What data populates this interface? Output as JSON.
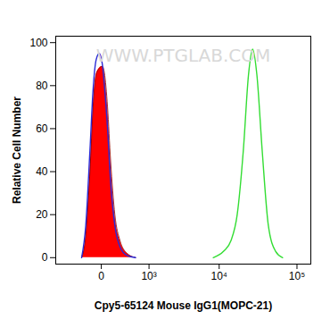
{
  "chart_data": {
    "type": "histogram_overlay",
    "x_label": "Cpy5-65124 Mouse IgG1(MOPC-21)",
    "y_label": "Relative Cell Number",
    "annotations": [
      {
        "text": "WWW.PTGLAB.COM"
      }
    ],
    "log": "x",
    "xlim": [
      -920,
      150000
    ],
    "xticks": [
      0,
      {
        "value": 1000,
        "label": "10³"
      },
      {
        "value": 10000,
        "label": "10⁴"
      },
      {
        "value": 100000,
        "label": "10⁵"
      }
    ],
    "ylim": [
      -3,
      103
    ],
    "yticks": [
      0,
      20,
      40,
      60,
      80,
      100
    ],
    "grid": false,
    "series": [
      {
        "type": "area",
        "color": "#ff0000",
        "x": [
          -257,
          -190,
          -130,
          -90,
          -54,
          -21,
          10,
          31,
          66,
          103,
          160,
          239,
          370,
          567
        ],
        "values": [
          0,
          10,
          40,
          70,
          85,
          88,
          89,
          86,
          70,
          45,
          20,
          8,
          2,
          0
        ]
      },
      {
        "type": "line",
        "color": "#2b2bd6",
        "x": [
          -257,
          -190,
          -130,
          -90,
          -54,
          -21,
          10,
          31,
          66,
          103,
          160,
          239,
          370,
          567
        ],
        "values": [
          0,
          15,
          50,
          78,
          92,
          95,
          90,
          80,
          60,
          35,
          15,
          5,
          1,
          0
        ]
      },
      {
        "type": "line",
        "color": "#33dd33",
        "x": [
          8350,
          11450,
          14290,
          17160,
          20600,
          24000,
          27100,
          30760,
          35940,
          43100,
          53260,
          65700
        ],
        "values": [
          0,
          3,
          8,
          20,
          50,
          85,
          97,
          85,
          50,
          15,
          3,
          0
        ]
      }
    ]
  }
}
